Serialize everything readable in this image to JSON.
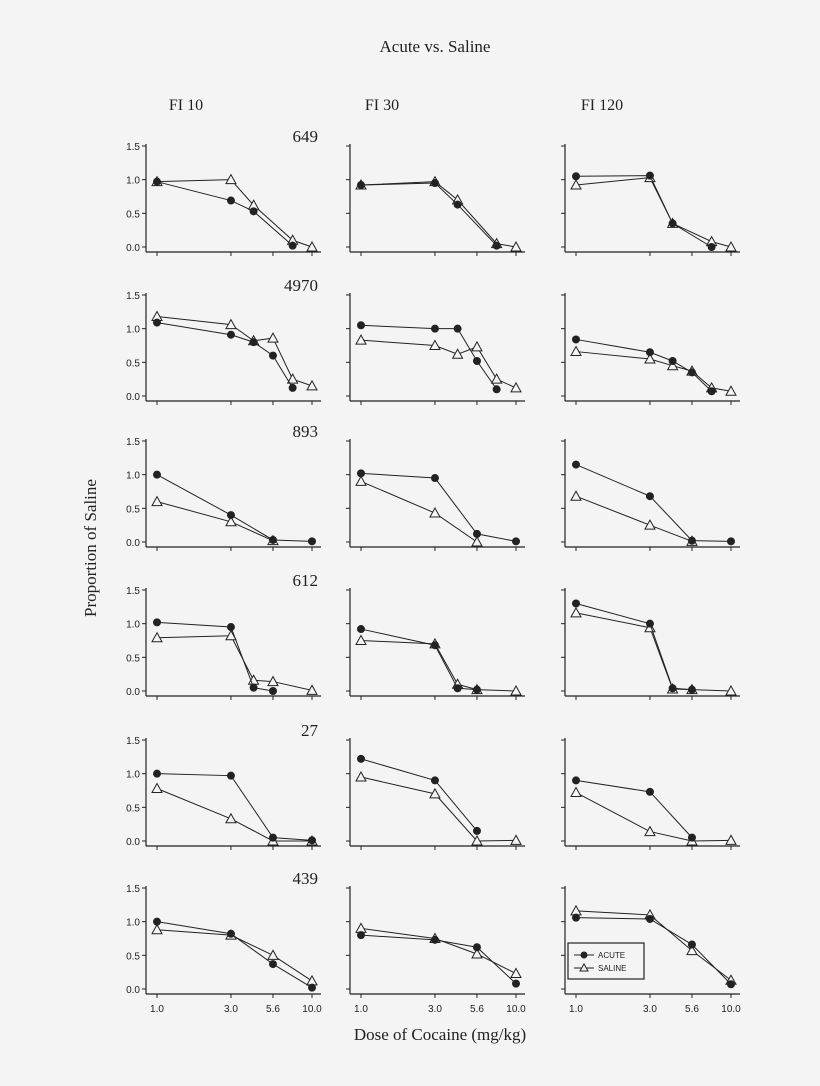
{
  "chart_data": {
    "type": "line",
    "title": "Acute vs. Saline",
    "xlabel": "Dose of Cocaine (mg/kg)",
    "ylabel": "Proportion of Saline",
    "x_scale": "log",
    "xlim": [
      1,
      10
    ],
    "ylim": [
      0,
      1.5
    ],
    "x_ticks": [
      "1.0",
      "3.0",
      "5.6",
      "10.0"
    ],
    "x_tick_values": [
      1,
      3,
      5.6,
      10
    ],
    "y_ticks": [
      "0.0",
      "0.5",
      "1.0",
      "1.5"
    ],
    "y_tick_values": [
      0,
      0.5,
      1.0,
      1.5
    ],
    "grid": false,
    "columns": [
      "FI 10",
      "FI 30",
      "FI 120"
    ],
    "legend": {
      "placement": "lower-left of FI 120 / 439 panel",
      "entries": [
        {
          "name": "ACUTE",
          "marker": "filled-circle",
          "color": "#222222"
        },
        {
          "name": "SALINE",
          "marker": "open-triangle",
          "color": "#222222"
        }
      ]
    },
    "rows": [
      {
        "subject": "649",
        "panels": [
          {
            "acute": [
              [
                1,
                0.97
              ],
              [
                3,
                0.69
              ],
              [
                4.2,
                0.53
              ],
              [
                7.5,
                0.02
              ]
            ],
            "saline": [
              [
                1,
                0.97
              ],
              [
                3,
                1.0
              ],
              [
                4.2,
                0.62
              ],
              [
                7.5,
                0.1
              ],
              [
                10,
                0.0
              ]
            ]
          },
          {
            "acute": [
              [
                1,
                0.92
              ],
              [
                3,
                0.95
              ],
              [
                4.2,
                0.63
              ],
              [
                7.5,
                0.02
              ]
            ],
            "saline": [
              [
                1,
                0.92
              ],
              [
                3,
                0.97
              ],
              [
                4.2,
                0.7
              ],
              [
                7.5,
                0.05
              ],
              [
                10,
                0.0
              ]
            ]
          },
          {
            "acute": [
              [
                1,
                1.05
              ],
              [
                3,
                1.06
              ],
              [
                4.2,
                0.35
              ],
              [
                7.5,
                0.0
              ]
            ],
            "saline": [
              [
                1,
                0.92
              ],
              [
                3,
                1.03
              ],
              [
                4.2,
                0.35
              ],
              [
                7.5,
                0.08
              ],
              [
                10,
                0.0
              ]
            ]
          }
        ]
      },
      {
        "subject": "4970",
        "panels": [
          {
            "acute": [
              [
                1,
                1.09
              ],
              [
                3,
                0.91
              ],
              [
                4.2,
                0.8
              ],
              [
                5.6,
                0.6
              ],
              [
                7.5,
                0.12
              ]
            ],
            "saline": [
              [
                1,
                1.18
              ],
              [
                3,
                1.06
              ],
              [
                4.2,
                0.82
              ],
              [
                5.6,
                0.86
              ],
              [
                7.5,
                0.25
              ],
              [
                10,
                0.15
              ]
            ]
          },
          {
            "acute": [
              [
                1,
                1.05
              ],
              [
                3,
                1.0
              ],
              [
                4.2,
                1.0
              ],
              [
                5.6,
                0.52
              ],
              [
                7.5,
                0.1
              ]
            ],
            "saline": [
              [
                1,
                0.83
              ],
              [
                3,
                0.75
              ],
              [
                4.2,
                0.62
              ],
              [
                5.6,
                0.73
              ],
              [
                7.5,
                0.25
              ],
              [
                10,
                0.12
              ]
            ]
          },
          {
            "acute": [
              [
                1,
                0.84
              ],
              [
                3,
                0.65
              ],
              [
                4.2,
                0.52
              ],
              [
                5.6,
                0.35
              ],
              [
                7.5,
                0.07
              ]
            ],
            "saline": [
              [
                1,
                0.66
              ],
              [
                3,
                0.55
              ],
              [
                4.2,
                0.45
              ],
              [
                5.6,
                0.37
              ],
              [
                7.5,
                0.12
              ],
              [
                10,
                0.07
              ]
            ]
          }
        ]
      },
      {
        "subject": "893",
        "panels": [
          {
            "acute": [
              [
                1,
                1.0
              ],
              [
                3,
                0.4
              ],
              [
                5.6,
                0.03
              ],
              [
                10,
                0.01
              ]
            ],
            "saline": [
              [
                1,
                0.6
              ],
              [
                3,
                0.3
              ],
              [
                5.6,
                0.02
              ]
            ]
          },
          {
            "acute": [
              [
                1,
                1.02
              ],
              [
                3,
                0.95
              ],
              [
                5.6,
                0.12
              ],
              [
                10,
                0.01
              ]
            ],
            "saline": [
              [
                1,
                0.9
              ],
              [
                3,
                0.43
              ],
              [
                5.6,
                0.0
              ]
            ]
          },
          {
            "acute": [
              [
                1,
                1.15
              ],
              [
                3,
                0.68
              ],
              [
                5.6,
                0.02
              ],
              [
                10,
                0.01
              ]
            ],
            "saline": [
              [
                1,
                0.68
              ],
              [
                3,
                0.25
              ],
              [
                5.6,
                0.01
              ]
            ]
          }
        ]
      },
      {
        "subject": "612",
        "panels": [
          {
            "acute": [
              [
                1,
                1.02
              ],
              [
                3,
                0.95
              ],
              [
                4.2,
                0.05
              ],
              [
                5.6,
                0.0
              ]
            ],
            "saline": [
              [
                1,
                0.79
              ],
              [
                3,
                0.82
              ],
              [
                4.2,
                0.16
              ],
              [
                5.6,
                0.14
              ],
              [
                10,
                0.01
              ]
            ]
          },
          {
            "acute": [
              [
                1,
                0.92
              ],
              [
                3,
                0.68
              ],
              [
                4.2,
                0.04
              ],
              [
                5.6,
                0.02
              ]
            ],
            "saline": [
              [
                1,
                0.75
              ],
              [
                3,
                0.7
              ],
              [
                4.2,
                0.1
              ],
              [
                5.6,
                0.02
              ],
              [
                10,
                0.0
              ]
            ]
          },
          {
            "acute": [
              [
                1,
                1.3
              ],
              [
                3,
                1.0
              ],
              [
                4.2,
                0.04
              ],
              [
                5.6,
                0.02
              ]
            ],
            "saline": [
              [
                1,
                1.16
              ],
              [
                3,
                0.94
              ],
              [
                4.2,
                0.03
              ],
              [
                5.6,
                0.02
              ],
              [
                10,
                0.0
              ]
            ]
          }
        ]
      },
      {
        "subject": "27",
        "panels": [
          {
            "acute": [
              [
                1,
                1.0
              ],
              [
                3,
                0.97
              ],
              [
                5.6,
                0.05
              ],
              [
                10,
                0.01
              ]
            ],
            "saline": [
              [
                1,
                0.78
              ],
              [
                3,
                0.33
              ],
              [
                5.6,
                0.0
              ],
              [
                10,
                0.0
              ]
            ]
          },
          {
            "acute": [
              [
                1,
                1.22
              ],
              [
                3,
                0.9
              ],
              [
                5.6,
                0.15
              ]
            ],
            "saline": [
              [
                1,
                0.95
              ],
              [
                3,
                0.7
              ],
              [
                5.6,
                0.0
              ],
              [
                10,
                0.01
              ]
            ]
          },
          {
            "acute": [
              [
                1,
                0.9
              ],
              [
                3,
                0.73
              ],
              [
                5.6,
                0.05
              ]
            ],
            "saline": [
              [
                1,
                0.72
              ],
              [
                3,
                0.14
              ],
              [
                5.6,
                0.0
              ],
              [
                10,
                0.01
              ]
            ]
          }
        ]
      },
      {
        "subject": "439",
        "panels": [
          {
            "acute": [
              [
                1,
                1.0
              ],
              [
                3,
                0.82
              ],
              [
                5.6,
                0.37
              ],
              [
                10,
                0.02
              ]
            ],
            "saline": [
              [
                1,
                0.88
              ],
              [
                3,
                0.8
              ],
              [
                5.6,
                0.5
              ],
              [
                10,
                0.12
              ]
            ]
          },
          {
            "acute": [
              [
                1,
                0.8
              ],
              [
                3,
                0.73
              ],
              [
                5.6,
                0.62
              ],
              [
                10,
                0.08
              ]
            ],
            "saline": [
              [
                1,
                0.9
              ],
              [
                3,
                0.75
              ],
              [
                5.6,
                0.52
              ],
              [
                10,
                0.23
              ]
            ]
          },
          {
            "acute": [
              [
                1,
                1.06
              ],
              [
                3,
                1.04
              ],
              [
                5.6,
                0.66
              ],
              [
                10,
                0.07
              ]
            ],
            "saline": [
              [
                1,
                1.16
              ],
              [
                3,
                1.1
              ],
              [
                5.6,
                0.57
              ],
              [
                10,
                0.13
              ]
            ]
          }
        ]
      }
    ]
  }
}
